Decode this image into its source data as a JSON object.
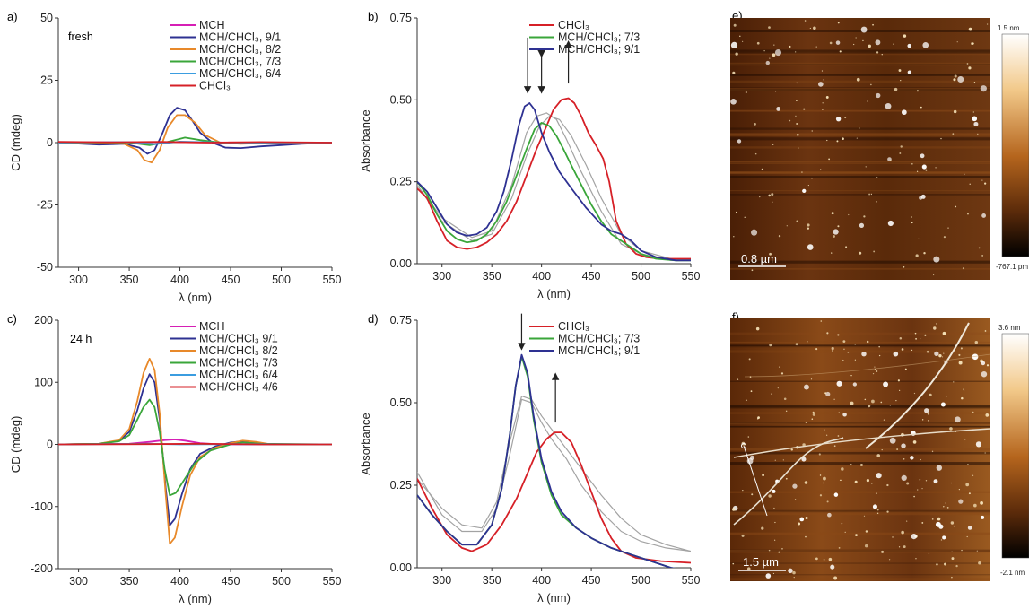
{
  "chart_data": [
    {
      "id": "a",
      "panel_label": "a)",
      "type": "line",
      "annotation": "fresh",
      "xlabel": "λ (nm)",
      "ylabel": "CD (mdeg)",
      "xlim": [
        280,
        550
      ],
      "ylim": [
        -50,
        50
      ],
      "xticks": [
        300,
        350,
        400,
        450,
        500,
        550
      ],
      "yticks": [
        -50,
        -25,
        0,
        25,
        50
      ],
      "legend_position": "top-right",
      "series": [
        {
          "name": "MCH",
          "color": "#d61fb5",
          "x": [
            280,
            340,
            380,
            420,
            480,
            550
          ],
          "y": [
            0,
            0.2,
            0.2,
            0.1,
            0,
            0
          ]
        },
        {
          "name": "MCH/CHCl₃, 9/1",
          "color": "#2e3192",
          "x": [
            280,
            320,
            345,
            360,
            368,
            375,
            382,
            390,
            397,
            405,
            412,
            420,
            432,
            445,
            460,
            480,
            500,
            520,
            550
          ],
          "y": [
            0,
            -0.8,
            -0.5,
            -2,
            -4.5,
            -3,
            3,
            11,
            14,
            13,
            9,
            4,
            0,
            -2,
            -2.2,
            -1.5,
            -1,
            -0.5,
            0
          ]
        },
        {
          "name": "MCH/CHCl₃, 8/2",
          "color": "#e8892a",
          "x": [
            280,
            320,
            345,
            358,
            365,
            372,
            380,
            388,
            397,
            405,
            415,
            425,
            440,
            460,
            500,
            550
          ],
          "y": [
            0,
            0,
            -0.5,
            -3,
            -7,
            -8,
            -3,
            6,
            11,
            11,
            8,
            3,
            0,
            -0.5,
            0,
            0
          ]
        },
        {
          "name": "MCH/CHCl₃, 7/3",
          "color": "#3aa63a",
          "x": [
            280,
            350,
            370,
            385,
            395,
            405,
            420,
            440,
            500,
            550
          ],
          "y": [
            0,
            0,
            -1,
            0,
            1,
            2,
            1,
            0,
            0,
            0
          ]
        },
        {
          "name": "MCH/CHCl₃, 6/4",
          "color": "#3b9de0",
          "x": [
            280,
            350,
            375,
            400,
            420,
            450,
            550
          ],
          "y": [
            0,
            0.2,
            -0.6,
            0.4,
            0.2,
            0,
            0
          ]
        },
        {
          "name": "CHCl₃",
          "color": "#d62027",
          "x": [
            280,
            330,
            380,
            430,
            480,
            550
          ],
          "y": [
            0.3,
            0.1,
            0.3,
            0,
            0.2,
            0
          ]
        }
      ]
    },
    {
      "id": "b",
      "panel_label": "b)",
      "type": "line",
      "xlabel": "λ (nm)",
      "ylabel": "Absorbance",
      "xlim": [
        275,
        550
      ],
      "ylim": [
        0,
        0.75
      ],
      "xticks": [
        300,
        350,
        400,
        450,
        500,
        550
      ],
      "yticks": [
        0.0,
        0.25,
        0.5,
        0.75
      ],
      "ytick_labels": [
        "0.00",
        "0.25",
        "0.50",
        "0.75"
      ],
      "legend_position": "top-right",
      "series": [
        {
          "name": "CHCl₃",
          "color": "#d62027",
          "x": [
            275,
            285,
            295,
            305,
            315,
            325,
            335,
            345,
            355,
            365,
            375,
            385,
            395,
            405,
            412,
            420,
            427,
            433,
            440,
            447,
            455,
            462,
            468,
            475,
            485,
            495,
            505,
            520,
            550
          ],
          "y": [
            0.23,
            0.2,
            0.13,
            0.07,
            0.05,
            0.045,
            0.05,
            0.065,
            0.09,
            0.13,
            0.19,
            0.27,
            0.35,
            0.42,
            0.47,
            0.5,
            0.505,
            0.49,
            0.45,
            0.4,
            0.36,
            0.32,
            0.25,
            0.13,
            0.06,
            0.03,
            0.02,
            0.015,
            0.015
          ]
        },
        {
          "name": "MCH/CHCl₃; 7/3",
          "color": "#3aa63a",
          "x": [
            275,
            285,
            295,
            305,
            315,
            325,
            335,
            345,
            355,
            365,
            375,
            385,
            393,
            400,
            408,
            415,
            422,
            430,
            440,
            450,
            460,
            470,
            480,
            490,
            500,
            515,
            535,
            550
          ],
          "y": [
            0.25,
            0.21,
            0.15,
            0.1,
            0.075,
            0.065,
            0.07,
            0.09,
            0.13,
            0.19,
            0.27,
            0.35,
            0.41,
            0.43,
            0.42,
            0.39,
            0.35,
            0.3,
            0.24,
            0.18,
            0.13,
            0.09,
            0.07,
            0.05,
            0.03,
            0.015,
            0.01,
            0.01
          ]
        },
        {
          "name": "MCH/CHCl₃; 9/1",
          "color": "#2e3192",
          "x": [
            275,
            285,
            295,
            305,
            315,
            325,
            335,
            345,
            355,
            362,
            370,
            377,
            383,
            388,
            393,
            400,
            408,
            418,
            430,
            445,
            460,
            470,
            480,
            490,
            500,
            515,
            535,
            550
          ],
          "y": [
            0.25,
            0.22,
            0.17,
            0.12,
            0.095,
            0.085,
            0.09,
            0.11,
            0.16,
            0.22,
            0.32,
            0.42,
            0.48,
            0.49,
            0.47,
            0.4,
            0.34,
            0.28,
            0.23,
            0.17,
            0.12,
            0.1,
            0.09,
            0.07,
            0.04,
            0.02,
            0.01,
            0.01
          ]
        },
        {
          "name": "",
          "color": "#a3a3a3",
          "x": [
            275,
            300,
            330,
            350,
            370,
            385,
            398,
            408,
            418,
            430,
            445,
            460,
            480,
            500,
            530,
            550
          ],
          "y": [
            0.24,
            0.13,
            0.07,
            0.09,
            0.2,
            0.33,
            0.42,
            0.45,
            0.44,
            0.39,
            0.3,
            0.2,
            0.09,
            0.04,
            0.015,
            0.015
          ]
        },
        {
          "name": "",
          "color": "#a3a3a3",
          "x": [
            275,
            300,
            330,
            350,
            370,
            385,
            395,
            405,
            415,
            425,
            440,
            460,
            480,
            500,
            530,
            550
          ],
          "y": [
            0.24,
            0.14,
            0.08,
            0.1,
            0.24,
            0.4,
            0.45,
            0.46,
            0.44,
            0.38,
            0.28,
            0.16,
            0.06,
            0.03,
            0.01,
            0.01
          ]
        }
      ],
      "arrows": [
        {
          "x": 386,
          "from": 0.69,
          "to": 0.53,
          "dir": "down"
        },
        {
          "x": 400,
          "from": 0.64,
          "to": 0.53,
          "dir": "both"
        },
        {
          "x": 427,
          "from": 0.55,
          "to": 0.67,
          "dir": "up"
        }
      ]
    },
    {
      "id": "c",
      "panel_label": "c)",
      "type": "line",
      "annotation": "24 h",
      "xlabel": "λ (nm)",
      "ylabel": "CD (mdeg)",
      "xlim": [
        280,
        550
      ],
      "ylim": [
        -200,
        200
      ],
      "xticks": [
        300,
        350,
        400,
        450,
        500,
        550
      ],
      "yticks": [
        -200,
        -100,
        0,
        100,
        200
      ],
      "legend_position": "top-right",
      "series": [
        {
          "name": "MCH",
          "color": "#d61fb5",
          "x": [
            280,
            350,
            370,
            385,
            395,
            405,
            420,
            440,
            550
          ],
          "y": [
            0,
            1,
            4,
            7,
            8,
            6,
            2,
            0,
            0
          ]
        },
        {
          "name": "MCH/CHCl₃ 9/1",
          "color": "#2e3192",
          "x": [
            280,
            320,
            340,
            350,
            358,
            364,
            370,
            375,
            380,
            386,
            390,
            395,
            402,
            410,
            420,
            435,
            450,
            462,
            475,
            490,
            550
          ],
          "y": [
            0,
            1,
            6,
            20,
            55,
            90,
            113,
            100,
            40,
            -70,
            -130,
            -120,
            -80,
            -40,
            -15,
            -3,
            3,
            5,
            3,
            0,
            0
          ]
        },
        {
          "name": "MCH/CHCl₃ 8/2",
          "color": "#e8892a",
          "x": [
            280,
            320,
            340,
            350,
            358,
            364,
            370,
            375,
            380,
            386,
            390,
            395,
            402,
            410,
            420,
            435,
            450,
            462,
            475,
            490,
            550
          ],
          "y": [
            0,
            1,
            7,
            25,
            70,
            115,
            138,
            120,
            50,
            -80,
            -160,
            -150,
            -100,
            -50,
            -20,
            -5,
            2,
            6,
            4,
            0,
            0
          ]
        },
        {
          "name": "MCH/CHCl₃ 7/3",
          "color": "#3aa63a",
          "x": [
            280,
            320,
            340,
            350,
            358,
            364,
            370,
            375,
            380,
            385,
            390,
            396,
            405,
            415,
            430,
            450,
            462,
            480,
            550
          ],
          "y": [
            0,
            1,
            5,
            15,
            40,
            60,
            72,
            60,
            20,
            -40,
            -82,
            -78,
            -55,
            -30,
            -10,
            0,
            3,
            1,
            0
          ]
        },
        {
          "name": "MCH/CHCl₃ 6/4",
          "color": "#3b9de0",
          "x": [
            280,
            370,
            400,
            450,
            550
          ],
          "y": [
            0,
            1,
            0,
            0.5,
            0
          ]
        },
        {
          "name": "MCH/CHCl₃ 4/6",
          "color": "#d62027",
          "x": [
            280,
            370,
            420,
            480,
            550
          ],
          "y": [
            0,
            0.5,
            1,
            0,
            0
          ]
        }
      ]
    },
    {
      "id": "d",
      "panel_label": "d)",
      "type": "line",
      "xlabel": "λ (nm)",
      "ylabel": "Absorbance",
      "xlim": [
        275,
        550
      ],
      "ylim": [
        0,
        0.75
      ],
      "xticks": [
        300,
        350,
        400,
        450,
        500,
        550
      ],
      "yticks": [
        0.0,
        0.25,
        0.5,
        0.75
      ],
      "ytick_labels": [
        "0.00",
        "0.25",
        "0.50",
        "0.75"
      ],
      "legend_position": "top-right",
      "series": [
        {
          "name": "CHCl₃",
          "color": "#d62027",
          "x": [
            275,
            290,
            305,
            320,
            330,
            345,
            360,
            375,
            385,
            395,
            405,
            413,
            420,
            430,
            440,
            450,
            460,
            470,
            480,
            495,
            520,
            550
          ],
          "y": [
            0.27,
            0.18,
            0.1,
            0.06,
            0.05,
            0.07,
            0.13,
            0.21,
            0.28,
            0.35,
            0.39,
            0.41,
            0.41,
            0.38,
            0.31,
            0.23,
            0.15,
            0.09,
            0.05,
            0.03,
            0.02,
            0.015
          ]
        },
        {
          "name": "MCH/CHCl₃; 7/3",
          "color": "#3aa63a",
          "x": [
            275,
            290,
            305,
            320,
            335,
            350,
            360,
            368,
            374,
            380,
            386,
            392,
            400,
            410,
            420,
            435,
            450,
            470,
            490,
            510,
            530,
            550
          ],
          "y": [
            0.22,
            0.16,
            0.11,
            0.07,
            0.07,
            0.13,
            0.24,
            0.4,
            0.55,
            0.64,
            0.58,
            0.45,
            0.32,
            0.22,
            0.16,
            0.12,
            0.09,
            0.06,
            0.04,
            0.02,
            0.0,
            -0.01
          ]
        },
        {
          "name": "MCH/CHCl₃; 9/1",
          "color": "#2e3192",
          "x": [
            275,
            290,
            305,
            320,
            335,
            350,
            360,
            368,
            374,
            380,
            386,
            392,
            400,
            410,
            420,
            435,
            450,
            470,
            490,
            510,
            530,
            550
          ],
          "y": [
            0.22,
            0.16,
            0.11,
            0.07,
            0.07,
            0.13,
            0.24,
            0.4,
            0.55,
            0.645,
            0.59,
            0.46,
            0.33,
            0.23,
            0.17,
            0.12,
            0.09,
            0.06,
            0.04,
            0.02,
            0.0,
            -0.01
          ]
        },
        {
          "name": "",
          "color": "#a3a3a3",
          "x": [
            275,
            300,
            320,
            340,
            355,
            368,
            380,
            390,
            400,
            410,
            425,
            440,
            460,
            480,
            500,
            525,
            550
          ],
          "y": [
            0.29,
            0.16,
            0.11,
            0.11,
            0.18,
            0.34,
            0.51,
            0.5,
            0.44,
            0.39,
            0.33,
            0.25,
            0.17,
            0.11,
            0.08,
            0.06,
            0.05
          ]
        },
        {
          "name": "",
          "color": "#a3a3a3",
          "x": [
            275,
            300,
            320,
            340,
            355,
            368,
            380,
            390,
            400,
            410,
            425,
            440,
            460,
            480,
            500,
            525,
            550
          ],
          "y": [
            0.27,
            0.18,
            0.13,
            0.12,
            0.2,
            0.38,
            0.52,
            0.51,
            0.46,
            0.42,
            0.36,
            0.3,
            0.22,
            0.15,
            0.1,
            0.07,
            0.05
          ]
        }
      ],
      "arrows": [
        {
          "x": 380,
          "from": 0.77,
          "to": 0.67,
          "dir": "down"
        },
        {
          "x": 414,
          "from": 0.44,
          "to": 0.58,
          "dir": "up"
        }
      ]
    }
  ],
  "afm": [
    {
      "id": "e",
      "panel_label": "e)",
      "scale_bar": "0.8 µm",
      "cbar_top": "1.5 nm",
      "cbar_bottom": "-767.1 pm"
    },
    {
      "id": "f",
      "panel_label": "f)",
      "scale_bar": "1.5 µm",
      "cbar_top": "3.6 nm",
      "cbar_bottom": "-2.1 nm"
    }
  ],
  "colors": {
    "afm_dark": "#1a0800",
    "afm_mid": "#5a2a0a",
    "afm_light": "#a8621e"
  }
}
